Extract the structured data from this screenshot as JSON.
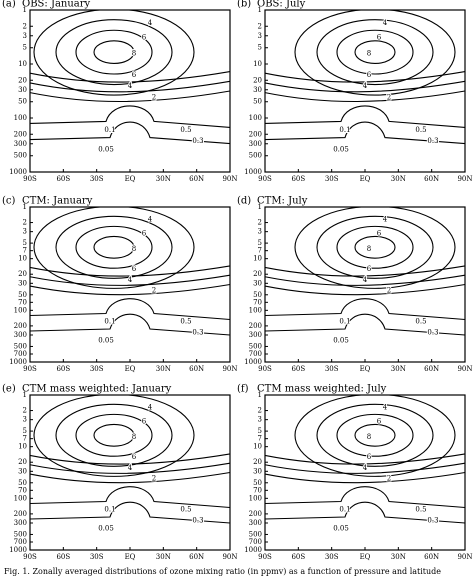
{
  "panels": [
    {
      "label": "(a)",
      "title": "OBS: January",
      "xticks": [
        "90S",
        "60S",
        "30S",
        "EQ",
        "30N",
        "60N",
        "90N"
      ],
      "yticks": [
        "1",
        "2",
        "3",
        "5",
        "10",
        "20",
        "30",
        "50",
        "100",
        "200",
        "300",
        "500",
        "1000"
      ],
      "contour_labels": [
        "4",
        "6",
        "8",
        "6",
        "4",
        "2",
        "0.5",
        "0.3",
        "0.1",
        "0.05"
      ]
    },
    {
      "label": "(b)",
      "title": "OBS: July",
      "xticks": [
        "90S",
        "60S",
        "30S",
        "EQ",
        "30N",
        "60N",
        "90N"
      ],
      "yticks": [
        "1",
        "2",
        "3",
        "5",
        "10",
        "20",
        "30",
        "50",
        "100",
        "200",
        "300",
        "500",
        "1000"
      ],
      "contour_labels": [
        "4",
        "6",
        "8",
        "6",
        "4",
        "2",
        "0.5",
        "0.3",
        "0.1",
        "0.05"
      ]
    },
    {
      "label": "(c)",
      "title": "CTM: January",
      "xticks": [
        "90S",
        "60S",
        "30S",
        "EQ",
        "30N",
        "60N",
        "90N"
      ],
      "yticks": [
        "1",
        "2",
        "3",
        "5",
        "7",
        "10",
        "20",
        "30",
        "50",
        "70",
        "100",
        "200",
        "300",
        "500",
        "700",
        "1000"
      ],
      "contour_labels": [
        "4",
        "6",
        "8",
        "6",
        "4",
        "2",
        "0.5",
        "0.3",
        "0.1",
        "0.05"
      ]
    },
    {
      "label": "(d)",
      "title": "CTM: July",
      "xticks": [
        "90S",
        "60S",
        "30S",
        "EQ",
        "30N",
        "60N",
        "90N"
      ],
      "yticks": [
        "1",
        "2",
        "3",
        "5",
        "7",
        "10",
        "20",
        "30",
        "50",
        "70",
        "100",
        "200",
        "300",
        "500",
        "700",
        "1000"
      ],
      "contour_labels": [
        "4",
        "6",
        "8",
        "6",
        "4",
        "2",
        "0.5",
        "0.3",
        "0.1",
        "0.05"
      ]
    },
    {
      "label": "(e)",
      "title": "CTM mass weighted: January",
      "xticks": [
        "90S",
        "60S",
        "30S",
        "EQ",
        "30N",
        "60N",
        "90N"
      ],
      "yticks": [
        "1",
        "2",
        "3",
        "5",
        "7",
        "10",
        "20",
        "30",
        "50",
        "70",
        "100",
        "200",
        "300",
        "500",
        "700",
        "1000"
      ],
      "contour_labels": [
        "4",
        "6",
        "8",
        "6",
        "4",
        "2",
        "0.5",
        "0.3",
        "0.1",
        "0.05"
      ]
    },
    {
      "label": "(f)",
      "title": "CTM mass weighted: July",
      "xticks": [
        "90S",
        "60S",
        "30S",
        "EQ",
        "30N",
        "60N",
        "90N"
      ],
      "yticks": [
        "1",
        "2",
        "3",
        "5",
        "7",
        "10",
        "20",
        "30",
        "50",
        "70",
        "100",
        "200",
        "300",
        "500",
        "700",
        "1000"
      ],
      "contour_labels": [
        "4",
        "6",
        "8",
        "6",
        "4",
        "2",
        "0.5",
        "0.3",
        "0.1",
        "0.05"
      ]
    }
  ],
  "caption": "Fig. 1. Zonally averaged distributions of ozone mixing ratio (in ppmv) as a function of pressure and latitude"
}
